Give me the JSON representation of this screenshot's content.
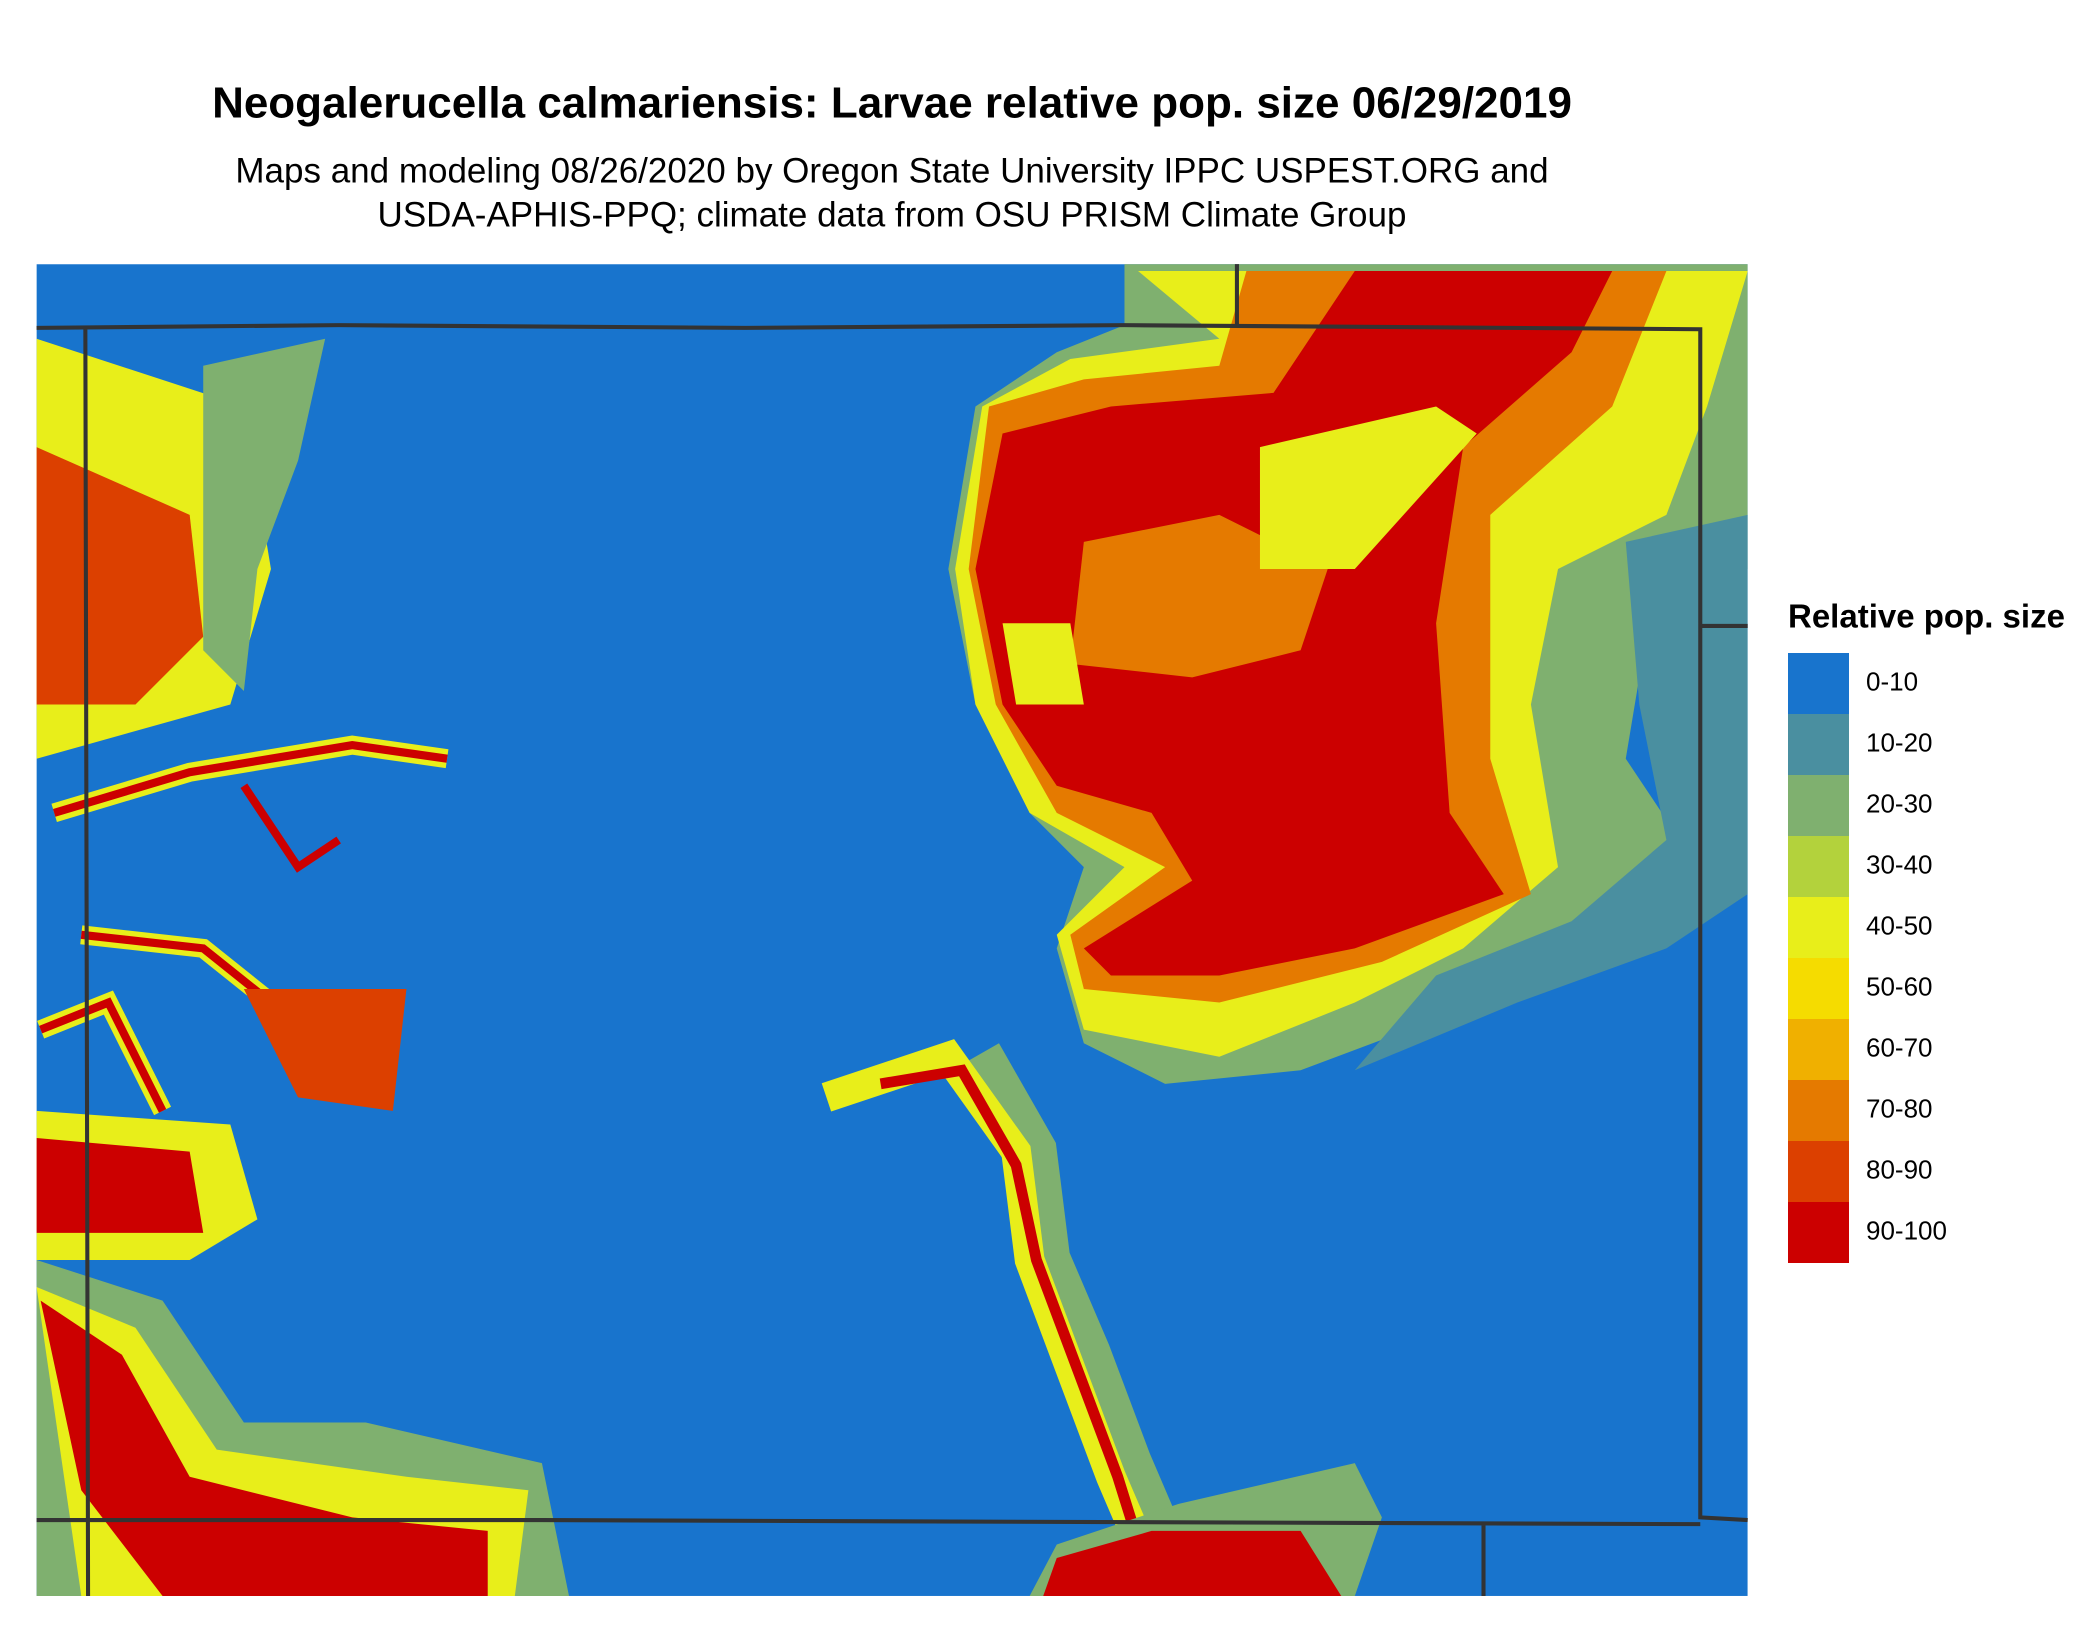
{
  "title": "Neogalerucella calmariensis: Larvae relative pop. size 06/29/2019",
  "subtitle": [
    "Maps and modeling 08/26/2020 by Oregon State University IPPC USPEST.ORG and",
    "USDA-APHIS-PPQ; climate data from OSU PRISM Climate Group"
  ],
  "legend": {
    "title": "Relative pop. size",
    "items": [
      {
        "label": "0-10",
        "color": "#1874cd"
      },
      {
        "label": "10-20",
        "color": "#4a8fa0"
      },
      {
        "label": "20-30",
        "color": "#7fb06f"
      },
      {
        "label": "30-40",
        "color": "#b3d23c"
      },
      {
        "label": "40-50",
        "color": "#e8ee1a"
      },
      {
        "label": "50-60",
        "color": "#f5dc00"
      },
      {
        "label": "60-70",
        "color": "#f0b000"
      },
      {
        "label": "70-80",
        "color": "#e57a00"
      },
      {
        "label": "80-90",
        "color": "#dc4000"
      },
      {
        "label": "90-100",
        "color": "#cc0000"
      }
    ]
  }
}
